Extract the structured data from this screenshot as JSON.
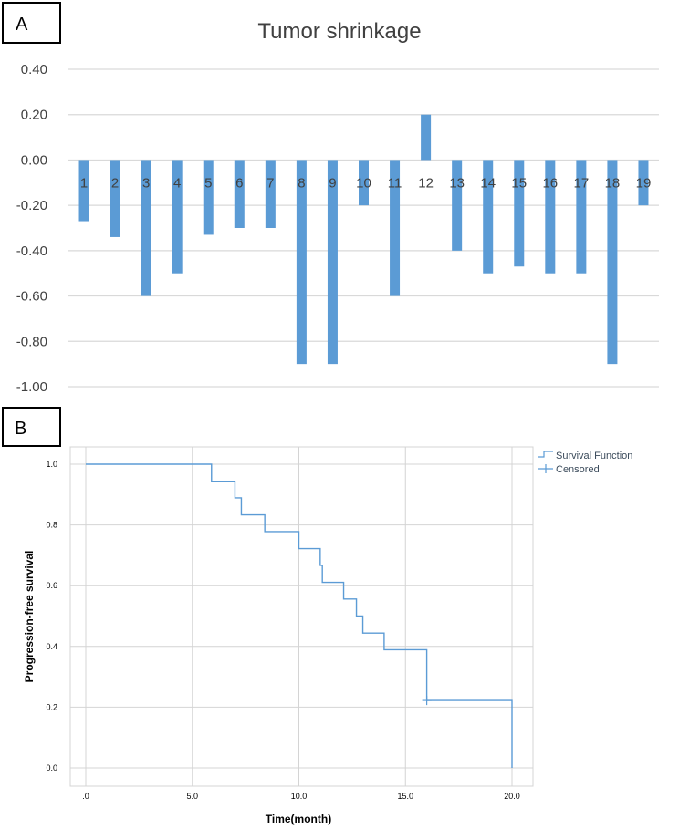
{
  "chart_data": [
    {
      "panel_label": "A",
      "type": "bar",
      "title": "Tumor shrinkage",
      "xlabel": "",
      "ylabel": "",
      "ylim": [
        -1.0,
        0.4
      ],
      "yticks": [
        "0.40",
        "0.20",
        "0.00",
        "-0.20",
        "-0.40",
        "-0.60",
        "-0.80",
        "-1.00"
      ],
      "ytick_values": [
        0.4,
        0.2,
        0.0,
        -0.2,
        -0.4,
        -0.6,
        -0.8,
        -1.0
      ],
      "categories": [
        "1",
        "2",
        "3",
        "4",
        "5",
        "6",
        "7",
        "8",
        "9",
        "10",
        "11",
        "12",
        "13",
        "14",
        "15",
        "16",
        "17",
        "18",
        "19"
      ],
      "values": [
        -0.27,
        -0.34,
        -0.6,
        -0.5,
        -0.33,
        -0.3,
        -0.3,
        -0.9,
        -0.9,
        -0.2,
        -0.6,
        0.2,
        -0.4,
        -0.5,
        -0.47,
        -0.5,
        -0.5,
        -0.9,
        -0.2
      ],
      "bar_color": "#5b9bd5",
      "grid": true
    },
    {
      "panel_label": "B",
      "type": "line",
      "subtype": "step",
      "title": "",
      "xlabel": "Time(month)",
      "ylabel": "Progression-free survival",
      "xlim": [
        0,
        20
      ],
      "ylim": [
        0,
        1.0
      ],
      "xticks": [
        ".0",
        "5.0",
        "10.0",
        "15.0",
        "20.0"
      ],
      "xtick_values": [
        0,
        5,
        10,
        15,
        20
      ],
      "yticks": [
        "0.0",
        "0.2",
        "0.4",
        "0.6",
        "0.8",
        "1.0"
      ],
      "ytick_values": [
        0,
        0.2,
        0.4,
        0.6,
        0.8,
        1.0
      ],
      "series": [
        {
          "name": "Survival Function",
          "x": [
            0,
            5.9,
            7.0,
            7.3,
            8.4,
            10.0,
            11.0,
            11.1,
            12.1,
            12.7,
            13.0,
            14.0,
            16.0,
            20.0
          ],
          "y": [
            1.0,
            0.944,
            0.889,
            0.833,
            0.778,
            0.722,
            0.667,
            0.611,
            0.556,
            0.5,
            0.444,
            0.389,
            0.222,
            0.0
          ]
        }
      ],
      "censored": [
        {
          "x": 16.0,
          "y": 0.222
        }
      ],
      "legend": [
        "Survival Function",
        "Censored"
      ],
      "legend_position": "top-right",
      "line_color": "#5b9bd5",
      "grid": true
    }
  ]
}
